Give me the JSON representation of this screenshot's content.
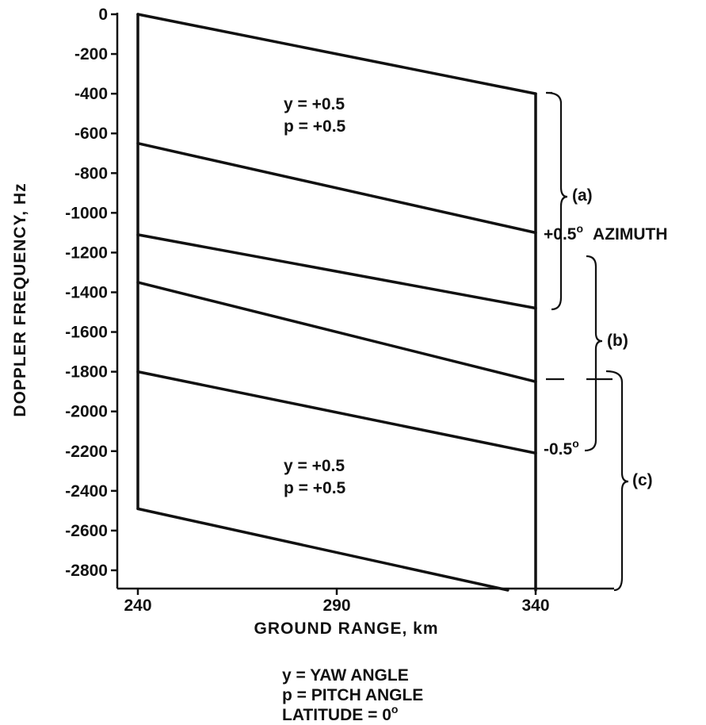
{
  "chart_data": {
    "type": "line",
    "xlabel": "GROUND RANGE, km",
    "ylabel": "DOPPLER FREQUENCY, Hz",
    "xlim": [
      240,
      340
    ],
    "ylim": [
      -2900,
      0
    ],
    "x_ticks": [
      240,
      290,
      340
    ],
    "y_ticks": [
      0,
      -200,
      -400,
      -600,
      -800,
      -1000,
      -1200,
      -1400,
      -1600,
      -1800,
      -2000,
      -2200,
      -2400,
      -2600,
      -2800
    ],
    "x_tick_labels": [
      "240",
      "290",
      "340"
    ],
    "y_tick_labels": [
      "0",
      "-200",
      "-400",
      "-600",
      "-800",
      "-1000",
      "-1200",
      "-1400",
      "-1600",
      "-1800",
      "-2000",
      "-2200",
      "-2400",
      "-2600",
      "-2800"
    ],
    "grid": false,
    "series": [
      {
        "x": [
          240,
          340
        ],
        "y": [
          0,
          -400
        ]
      },
      {
        "x": [
          240,
          340
        ],
        "y": [
          -650,
          -1100
        ]
      },
      {
        "x": [
          240,
          340
        ],
        "y": [
          -1110,
          -1480
        ]
      },
      {
        "x": [
          240,
          340
        ],
        "y": [
          -1350,
          -1850
        ]
      },
      {
        "x": [
          240,
          340
        ],
        "y": [
          -1800,
          -2210
        ]
      },
      {
        "x": [
          240,
          333
        ],
        "y": [
          -2490,
          -2900
        ]
      },
      {
        "x": [
          240,
          240
        ],
        "y": [
          0,
          -2490
        ]
      },
      {
        "x": [
          340,
          340
        ],
        "y": [
          -400,
          -2900
        ]
      }
    ],
    "annotations": {
      "upper_y": "y = +0.5",
      "upper_p": "p = +0.5",
      "lower_y": "y = +0.5",
      "lower_p": "p = +0.5",
      "azimuth_plus": "+0.5",
      "azimuth_plus_sup": "o",
      "azimuth_word": "AZIMUTH",
      "azimuth_minus": "-0.5",
      "azimuth_minus_sup": "o",
      "bracket_a": "(a)",
      "bracket_b": "(b)",
      "bracket_c": "(c)"
    },
    "legend_notes": {
      "yaw": "y = YAW ANGLE",
      "pitch": "p = PITCH ANGLE",
      "latitude": "LATITUDE = 0",
      "latitude_sup": "o"
    }
  }
}
